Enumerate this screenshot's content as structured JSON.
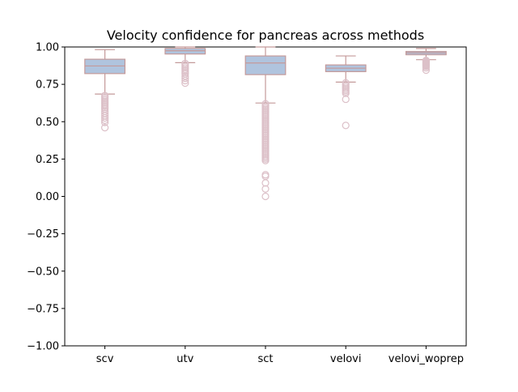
{
  "chart_data": {
    "type": "box",
    "title": "Velocity confidence for pancreas across methods",
    "xlabel": "",
    "ylabel": "",
    "categories": [
      "scv",
      "utv",
      "sct",
      "velovi",
      "velovi_woprep"
    ],
    "ylim": [
      -1.0,
      1.0
    ],
    "yticks": [
      -1.0,
      -0.75,
      -0.5,
      -0.25,
      0.0,
      0.25,
      0.5,
      0.75,
      1.0
    ],
    "ytick_labels": [
      "−1.00",
      "−0.75",
      "−0.50",
      "−0.25",
      "0.00",
      "0.25",
      "0.50",
      "0.75",
      "1.00"
    ],
    "grid": false,
    "legend": "none",
    "colors": {
      "box_fill": "#b0c4de",
      "box_edge": "#c49a9a",
      "median": "#c49a9a",
      "whisker": "#c49a9a",
      "flier": "#dcc0c8",
      "axis": "#000000"
    },
    "boxes": [
      {
        "name": "scv",
        "whislo": 0.685,
        "q1": 0.822,
        "med": 0.873,
        "q3": 0.918,
        "whishi": 0.982,
        "fliers": [
          0.675,
          0.665,
          0.655,
          0.645,
          0.635,
          0.625,
          0.615,
          0.605,
          0.595,
          0.585,
          0.57,
          0.555,
          0.54,
          0.525,
          0.51,
          0.495,
          0.46
        ]
      },
      {
        "name": "utv",
        "whislo": 0.895,
        "q1": 0.953,
        "med": 0.975,
        "q3": 0.99,
        "whishi": 1.0,
        "fliers": [
          0.89,
          0.88,
          0.87,
          0.86,
          0.85,
          0.84,
          0.83,
          0.82,
          0.805,
          0.79,
          0.775,
          0.758
        ]
      },
      {
        "name": "sct",
        "whislo": 0.625,
        "q1": 0.815,
        "med": 0.893,
        "q3": 0.94,
        "whishi": 1.0,
        "fliers": [
          0.62,
          0.61,
          0.6,
          0.59,
          0.58,
          0.57,
          0.56,
          0.55,
          0.54,
          0.53,
          0.52,
          0.51,
          0.5,
          0.49,
          0.48,
          0.47,
          0.46,
          0.45,
          0.44,
          0.43,
          0.42,
          0.41,
          0.4,
          0.39,
          0.38,
          0.37,
          0.36,
          0.35,
          0.34,
          0.33,
          0.32,
          0.31,
          0.3,
          0.29,
          0.28,
          0.27,
          0.26,
          0.25,
          0.24,
          0.145,
          0.135,
          0.09,
          0.05,
          0.0
        ]
      },
      {
        "name": "velovi",
        "whislo": 0.765,
        "q1": 0.835,
        "med": 0.858,
        "q3": 0.88,
        "whishi": 0.94,
        "fliers": [
          0.76,
          0.75,
          0.74,
          0.73,
          0.72,
          0.71,
          0.7,
          0.69,
          0.65,
          0.475
        ]
      },
      {
        "name": "velovi_woprep",
        "whislo": 0.915,
        "q1": 0.948,
        "med": 0.96,
        "q3": 0.97,
        "whishi": 0.99,
        "fliers": [
          0.91,
          0.905,
          0.9,
          0.895,
          0.89,
          0.885,
          0.88,
          0.875,
          0.87,
          0.86,
          0.845
        ]
      }
    ]
  }
}
